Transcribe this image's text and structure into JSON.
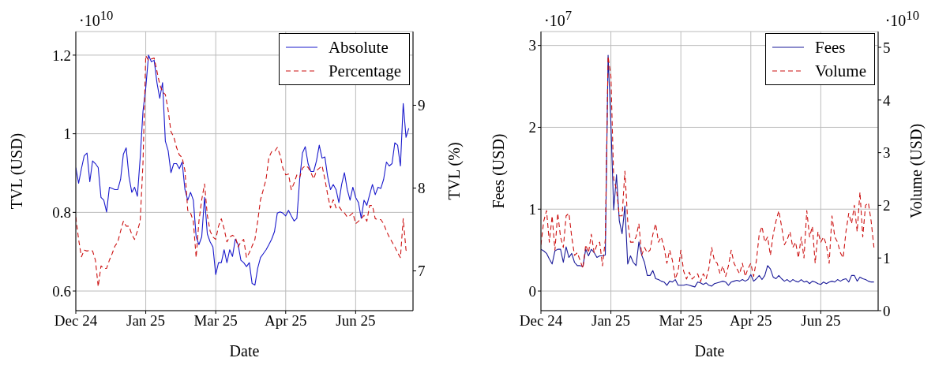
{
  "chart_data": [
    {
      "type": "line",
      "xlabel": "Date",
      "ylabel": "TVL (USD)",
      "y2label": "TVL (%)",
      "annotations": [
        "·10$^{10}$"
      ],
      "x": [
        "2024-12-01",
        "2024-12-03",
        "2024-12-05",
        "2024-12-07",
        "2024-12-09",
        "2024-12-11",
        "2024-12-13",
        "2024-12-15",
        "2024-12-17",
        "2024-12-19",
        "2024-12-21",
        "2024-12-23",
        "2024-12-25",
        "2024-12-27",
        "2024-12-29",
        "2024-12-31",
        "2025-01-02",
        "2025-01-04",
        "2025-01-06",
        "2025-01-08",
        "2025-01-10",
        "2025-01-12",
        "2025-01-14",
        "2025-01-16",
        "2025-01-18",
        "2025-01-20",
        "2025-01-22",
        "2025-01-24",
        "2025-01-26",
        "2025-01-28",
        "2025-01-30",
        "2025-02-01",
        "2025-02-03",
        "2025-02-05",
        "2025-02-07",
        "2025-02-09",
        "2025-02-11",
        "2025-02-13",
        "2025-02-15",
        "2025-02-17",
        "2025-02-19",
        "2025-02-21",
        "2025-02-23",
        "2025-02-25",
        "2025-02-27",
        "2025-03-01",
        "2025-03-03",
        "2025-03-05",
        "2025-03-07",
        "2025-03-09",
        "2025-03-11",
        "2025-03-13",
        "2025-03-15",
        "2025-03-17",
        "2025-03-19",
        "2025-03-21",
        "2025-03-23",
        "2025-03-25",
        "2025-03-27",
        "2025-03-29",
        "2025-03-31",
        "2025-04-02",
        "2025-04-04",
        "2025-04-06",
        "2025-04-08",
        "2025-04-10",
        "2025-04-12",
        "2025-04-14",
        "2025-04-16",
        "2025-04-18",
        "2025-04-20",
        "2025-04-22",
        "2025-04-24",
        "2025-04-26",
        "2025-04-28",
        "2025-04-30",
        "2025-05-02",
        "2025-05-04",
        "2025-05-06",
        "2025-05-08",
        "2025-05-10",
        "2025-05-12",
        "2025-05-14",
        "2025-05-16",
        "2025-05-18",
        "2025-05-20",
        "2025-05-22",
        "2025-05-24",
        "2025-05-26",
        "2025-05-28",
        "2025-05-30",
        "2025-06-01",
        "2025-06-03",
        "2025-06-05",
        "2025-06-07",
        "2025-06-09",
        "2025-06-11",
        "2025-06-13",
        "2025-06-15",
        "2025-06-17",
        "2025-06-19",
        "2025-06-21",
        "2025-06-23",
        "2025-06-25",
        "2025-06-27",
        "2025-06-29",
        "2025-07-01",
        "2025-07-03",
        "2025-07-05",
        "2025-07-07",
        "2025-07-09",
        "2025-07-11",
        "2025-07-13",
        "2025-07-15",
        "2025-07-17",
        "2025-07-19",
        "2025-07-21",
        "2025-07-23",
        "2025-07-25",
        "2025-07-27"
      ],
      "xlim": [
        "2024-12-01",
        "2025-07-30"
      ],
      "xticks": [
        {
          "value": "2024-12-01",
          "label": "Dec 24"
        },
        {
          "value": "2025-01-20",
          "label": "Jan 25"
        },
        {
          "value": "2025-03-11",
          "label": "Mar 25"
        },
        {
          "value": "2025-04-30",
          "label": "Apr 25"
        },
        {
          "value": "2025-06-19",
          "label": "Jun 25"
        }
      ],
      "ylim": [
        0.55,
        1.26
      ],
      "yticks": [
        0.6,
        0.8,
        1,
        1.2
      ],
      "y2lim": [
        6.52,
        9.89
      ],
      "y2ticks": [
        7,
        8,
        9
      ],
      "grid": true,
      "legend": "top right",
      "series": [
        {
          "name": "Absolute",
          "color": "#1a1acc",
          "line_style": "solid",
          "values": [
            0.914,
            0.874,
            0.911,
            0.944,
            0.951,
            0.878,
            0.931,
            0.924,
            0.914,
            0.838,
            0.831,
            0.801,
            0.864,
            0.861,
            0.858,
            0.858,
            0.884,
            0.948,
            0.964,
            0.891,
            0.851,
            0.864,
            0.841,
            0.938,
            1.057,
            1.117,
            1.2,
            1.183,
            1.187,
            1.13,
            1.09,
            1.13,
            0.981,
            0.957,
            0.901,
            0.924,
            0.924,
            0.911,
            0.928,
            0.858,
            0.831,
            0.851,
            0.831,
            0.738,
            0.718,
            0.738,
            0.838,
            0.745,
            0.725,
            0.712,
            0.642,
            0.672,
            0.672,
            0.705,
            0.672,
            0.705,
            0.688,
            0.732,
            0.718,
            0.678,
            0.672,
            0.662,
            0.672,
            0.619,
            0.615,
            0.658,
            0.685,
            0.695,
            0.705,
            0.718,
            0.732,
            0.751,
            0.798,
            0.801,
            0.798,
            0.791,
            0.805,
            0.791,
            0.778,
            0.785,
            0.884,
            0.951,
            0.967,
            0.924,
            0.904,
            0.904,
            0.931,
            0.971,
            0.938,
            0.941,
            0.891,
            0.858,
            0.871,
            0.858,
            0.825,
            0.871,
            0.901,
            0.858,
            0.831,
            0.864,
            0.838,
            0.825,
            0.785,
            0.831,
            0.818,
            0.845,
            0.871,
            0.845,
            0.864,
            0.861,
            0.884,
            0.928,
            0.918,
            0.924,
            0.977,
            0.971,
            0.918,
            1.077,
            0.991,
            1.014
          ]
        },
        {
          "name": "Percentage",
          "color": "#cc1111",
          "line_style": "dashed",
          "axis": "y2",
          "values": [
            7.65,
            7.38,
            7.17,
            7.25,
            7.24,
            7.25,
            7.24,
            7.13,
            6.81,
            7.06,
            7.03,
            7.03,
            7.13,
            7.21,
            7.3,
            7.35,
            7.48,
            7.6,
            7.54,
            7.54,
            7.44,
            7.38,
            7.48,
            7.6,
            8.3,
            9.6,
            9.54,
            9.56,
            9.57,
            9.41,
            9.25,
            9.16,
            9.13,
            8.94,
            8.68,
            8.62,
            8.49,
            8.4,
            8.37,
            8.21,
            7.73,
            7.7,
            7.6,
            7.16,
            7.6,
            7.86,
            8.05,
            7.67,
            7.48,
            7.41,
            7.38,
            7.54,
            7.63,
            7.51,
            7.35,
            7.41,
            7.43,
            7.41,
            7.29,
            7.35,
            7.38,
            7.16,
            7.22,
            7.3,
            7.38,
            7.6,
            7.86,
            7.98,
            8.11,
            8.37,
            8.44,
            8.44,
            8.49,
            8.4,
            8.24,
            8.16,
            8.17,
            7.98,
            8.06,
            8.16,
            8.13,
            8.24,
            8.27,
            8.25,
            8.19,
            8.11,
            8.21,
            8.24,
            8.27,
            8.11,
            7.92,
            7.76,
            7.86,
            7.76,
            7.78,
            7.73,
            7.7,
            7.65,
            7.67,
            7.7,
            7.57,
            7.6,
            7.63,
            7.67,
            7.6,
            7.79,
            7.79,
            7.63,
            7.62,
            7.62,
            7.57,
            7.48,
            7.41,
            7.35,
            7.29,
            7.22,
            7.16,
            7.63,
            7.25,
            7.22
          ]
        }
      ]
    },
    {
      "type": "line",
      "xlabel": "Date",
      "ylabel": "Fees (USD)",
      "y2label": "Volume (USD)",
      "annotations": [
        "·10$^{7}$",
        "·10$^{10}$"
      ],
      "x": [
        "2024-12-01",
        "2024-12-03",
        "2024-12-05",
        "2024-12-07",
        "2024-12-09",
        "2024-12-11",
        "2024-12-13",
        "2024-12-15",
        "2024-12-17",
        "2024-12-19",
        "2024-12-21",
        "2024-12-23",
        "2024-12-25",
        "2024-12-27",
        "2024-12-29",
        "2024-12-31",
        "2025-01-02",
        "2025-01-04",
        "2025-01-06",
        "2025-01-08",
        "2025-01-10",
        "2025-01-12",
        "2025-01-14",
        "2025-01-16",
        "2025-01-18",
        "2025-01-20",
        "2025-01-22",
        "2025-01-24",
        "2025-01-26",
        "2025-01-28",
        "2025-01-30",
        "2025-02-01",
        "2025-02-03",
        "2025-02-05",
        "2025-02-07",
        "2025-02-09",
        "2025-02-11",
        "2025-02-13",
        "2025-02-15",
        "2025-02-17",
        "2025-02-19",
        "2025-02-21",
        "2025-02-23",
        "2025-02-25",
        "2025-02-27",
        "2025-03-01",
        "2025-03-03",
        "2025-03-05",
        "2025-03-07",
        "2025-03-09",
        "2025-03-11",
        "2025-03-13",
        "2025-03-15",
        "2025-03-17",
        "2025-03-19",
        "2025-03-21",
        "2025-03-23",
        "2025-03-25",
        "2025-03-27",
        "2025-03-29",
        "2025-03-31",
        "2025-04-02",
        "2025-04-04",
        "2025-04-06",
        "2025-04-08",
        "2025-04-10",
        "2025-04-12",
        "2025-04-14",
        "2025-04-16",
        "2025-04-18",
        "2025-04-20",
        "2025-04-22",
        "2025-04-24",
        "2025-04-26",
        "2025-04-28",
        "2025-04-30",
        "2025-05-02",
        "2025-05-04",
        "2025-05-06",
        "2025-05-08",
        "2025-05-10",
        "2025-05-12",
        "2025-05-14",
        "2025-05-16",
        "2025-05-18",
        "2025-05-20",
        "2025-05-22",
        "2025-05-24",
        "2025-05-26",
        "2025-05-28",
        "2025-05-30",
        "2025-06-01",
        "2025-06-03",
        "2025-06-05",
        "2025-06-07",
        "2025-06-09",
        "2025-06-11",
        "2025-06-13",
        "2025-06-15",
        "2025-06-17",
        "2025-06-19",
        "2025-06-21",
        "2025-06-23",
        "2025-06-25",
        "2025-06-27",
        "2025-06-29",
        "2025-07-01",
        "2025-07-03",
        "2025-07-05",
        "2025-07-07",
        "2025-07-09",
        "2025-07-11",
        "2025-07-13",
        "2025-07-15",
        "2025-07-17",
        "2025-07-19",
        "2025-07-21",
        "2025-07-23",
        "2025-07-25",
        "2025-07-27"
      ],
      "xlim": [
        "2024-12-01",
        "2025-07-30"
      ],
      "xticks": [
        {
          "value": "2024-12-01",
          "label": "Dec 24"
        },
        {
          "value": "2025-01-20",
          "label": "Jan 25"
        },
        {
          "value": "2025-03-11",
          "label": "Mar 25"
        },
        {
          "value": "2025-04-30",
          "label": "Apr 25"
        },
        {
          "value": "2025-06-19",
          "label": "Jun 25"
        }
      ],
      "ylim": [
        -0.24,
        3.17
      ],
      "yticks": [
        0,
        1,
        2,
        3
      ],
      "y2lim": [
        0,
        5.3
      ],
      "y2ticks": [
        0,
        1,
        2,
        3,
        4,
        5
      ],
      "grid": true,
      "legend": "top right",
      "series": [
        {
          "name": "Fees",
          "color": "#1a1a99",
          "line_style": "solid",
          "values": [
            0.51,
            0.49,
            0.46,
            0.39,
            0.33,
            0.49,
            0.51,
            0.51,
            0.35,
            0.54,
            0.41,
            0.46,
            0.35,
            0.31,
            0.31,
            0.3,
            0.51,
            0.43,
            0.51,
            0.47,
            0.41,
            0.43,
            0.43,
            0.44,
            2.88,
            2.04,
            0.99,
            1.42,
            0.86,
            0.7,
            1.04,
            0.33,
            0.43,
            0.35,
            0.31,
            0.6,
            0.44,
            0.35,
            0.19,
            0.19,
            0.25,
            0.15,
            0.14,
            0.12,
            0.11,
            0.07,
            0.12,
            0.11,
            0.14,
            0.07,
            0.07,
            0.07,
            0.08,
            0.07,
            0.06,
            0.05,
            0.11,
            0.1,
            0.08,
            0.1,
            0.07,
            0.06,
            0.09,
            0.1,
            0.11,
            0.12,
            0.11,
            0.07,
            0.11,
            0.12,
            0.13,
            0.12,
            0.14,
            0.12,
            0.14,
            0.2,
            0.12,
            0.15,
            0.19,
            0.14,
            0.19,
            0.31,
            0.27,
            0.17,
            0.15,
            0.19,
            0.15,
            0.12,
            0.14,
            0.11,
            0.14,
            0.12,
            0.11,
            0.14,
            0.11,
            0.12,
            0.09,
            0.12,
            0.11,
            0.09,
            0.08,
            0.11,
            0.09,
            0.11,
            0.12,
            0.11,
            0.14,
            0.12,
            0.14,
            0.15,
            0.11,
            0.19,
            0.19,
            0.12,
            0.17,
            0.15,
            0.14,
            0.12,
            0.11,
            0.11
          ]
        },
        {
          "name": "Volume",
          "color": "#cc1111",
          "line_style": "dashed",
          "axis": "y2",
          "values": [
            1.25,
            1.7,
            1.9,
            1.3,
            1.8,
            1.15,
            1.85,
            1.4,
            1.2,
            1.8,
            1.85,
            1.4,
            1.05,
            1.1,
            0.95,
            0.8,
            1.25,
            1.1,
            1.45,
            1.1,
            1.25,
            1.3,
            0.85,
            1.35,
            4.83,
            4.45,
            2.5,
            2.3,
            1.8,
            1.8,
            2.65,
            1.7,
            1.3,
            1.3,
            1.4,
            1.65,
            1.05,
            1.2,
            1.1,
            1.15,
            1.45,
            1.65,
            1.3,
            1.4,
            1.2,
            0.9,
            1.15,
            0.95,
            0.6,
            0.75,
            1.15,
            0.75,
            0.6,
            0.73,
            0.6,
            0.65,
            0.7,
            0.55,
            0.7,
            0.6,
            0.8,
            1.2,
            0.95,
            0.9,
            0.7,
            0.85,
            0.65,
            0.85,
            1.15,
            0.9,
            0.8,
            0.7,
            0.9,
            0.65,
            0.8,
            0.9,
            0.65,
            0.95,
            1.45,
            1.6,
            1.3,
            1.4,
            1.05,
            1.45,
            1.7,
            1.9,
            1.6,
            1.25,
            1.35,
            1.5,
            1.2,
            1.3,
            1.0,
            1.4,
            1.0,
            1.9,
            1.4,
            1.6,
            0.9,
            1.5,
            1.3,
            1.4,
            1.25,
            0.9,
            1.8,
            1.4,
            1.3,
            1.1,
            1.0,
            1.5,
            1.85,
            1.65,
            2.0,
            1.5,
            2.25,
            1.4,
            2.0,
            2.05,
            1.7,
            1.2
          ]
        }
      ]
    }
  ]
}
